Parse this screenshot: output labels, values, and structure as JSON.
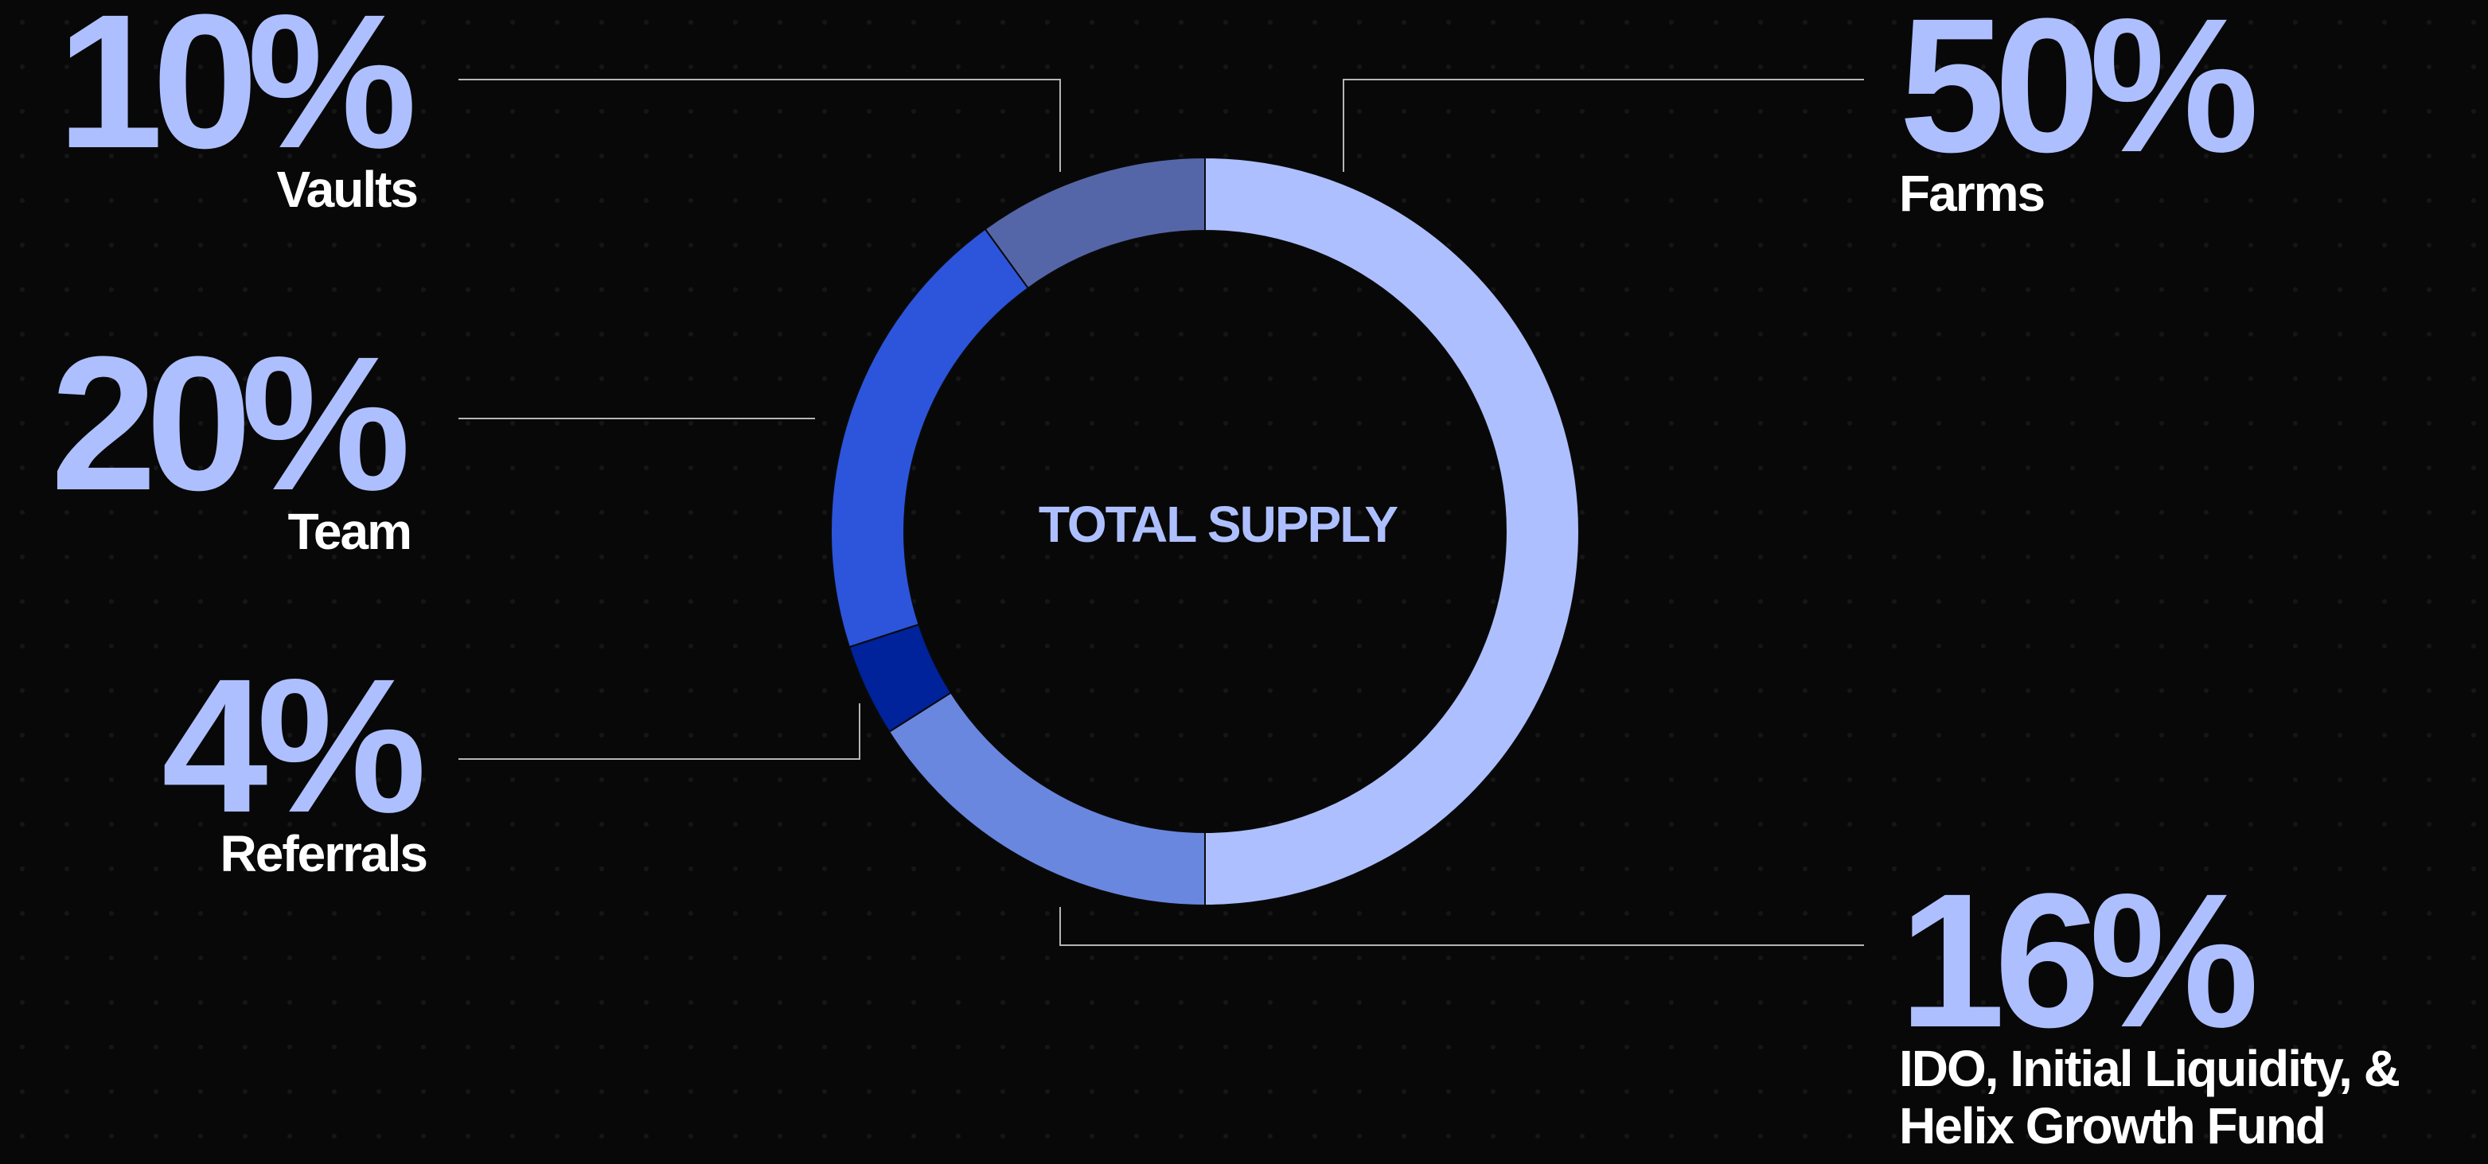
{
  "chart_data": {
    "type": "donut",
    "center_label": "TOTAL SUPPLY",
    "categories": [
      "Farms",
      "IDO, Initial Liquidity, & Helix Growth Fund",
      "Referrals",
      "Team",
      "Vaults"
    ],
    "values": [
      50,
      16,
      4,
      20,
      10
    ],
    "value_labels": [
      "50%",
      "16%",
      "4%",
      "20%",
      "10%"
    ],
    "colors": [
      "#aebfff",
      "#6a87e0",
      "#00229a",
      "#2c55dc",
      "#5566a8"
    ]
  }
}
